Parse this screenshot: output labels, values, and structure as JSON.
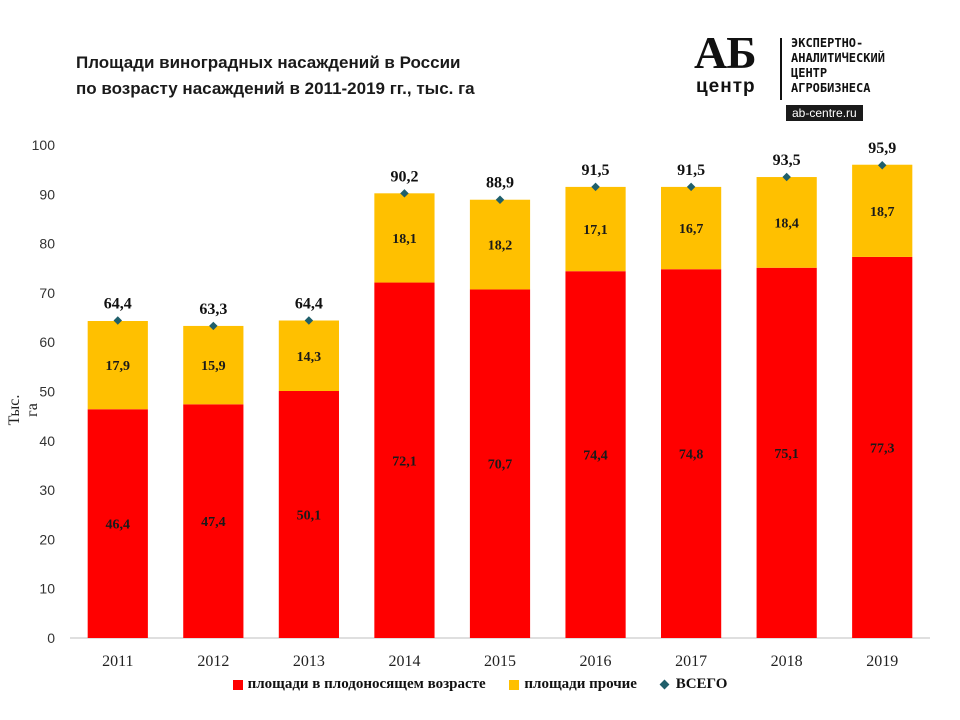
{
  "page": {
    "title_line1": "Площади виноградных насаждений в России",
    "title_line2": "по возрасту насаждений в 2011-2019 гг., тыс. га"
  },
  "logo": {
    "mark": "АБ",
    "mark_sub": "центр",
    "line1": "ЭКСПЕРТНО-",
    "line2": "АНАЛИТИЧЕСКИЙ",
    "line3": "ЦЕНТР",
    "line4": "АГРОБИЗНЕСА",
    "url": "ab-centre.ru"
  },
  "chart_data": {
    "type": "bar",
    "stacked": true,
    "title": "Площади виноградных насаждений в России по возрасту насаждений в 2011-2019 гг., тыс. га",
    "ylabel": "Тыс. га",
    "xlabel": "",
    "ylim": [
      0,
      100
    ],
    "yticks": [
      0,
      10,
      20,
      30,
      40,
      50,
      60,
      70,
      80,
      90,
      100
    ],
    "grid": false,
    "legend_position": "bottom",
    "categories": [
      "2011",
      "2012",
      "2013",
      "2014",
      "2015",
      "2016",
      "2017",
      "2018",
      "2019"
    ],
    "series": [
      {
        "name": "площади в плодоносящем возрасте",
        "color": "#ff0000",
        "values": [
          46.4,
          47.4,
          50.1,
          72.1,
          70.7,
          74.4,
          74.8,
          75.1,
          77.3
        ],
        "labels": [
          "46,4",
          "47,4",
          "50,1",
          "72,1",
          "70,7",
          "74,4",
          "74,8",
          "75,1",
          "77,3"
        ]
      },
      {
        "name": "площади прочие",
        "color": "#ffc000",
        "values": [
          17.9,
          15.9,
          14.3,
          18.1,
          18.2,
          17.1,
          16.7,
          18.4,
          18.7
        ],
        "labels": [
          "17,9",
          "15,9",
          "14,3",
          "18,1",
          "18,2",
          "17,1",
          "16,7",
          "18,4",
          "18,7"
        ]
      }
    ],
    "total": {
      "name": "ВСЕГО",
      "color": "#1f5f6b",
      "values": [
        64.4,
        63.3,
        64.4,
        90.2,
        88.9,
        91.5,
        91.5,
        93.5,
        95.9
      ],
      "labels": [
        "64,4",
        "63,3",
        "64,4",
        "90,2",
        "88,9",
        "91,5",
        "91,5",
        "93,5",
        "95,9"
      ]
    }
  }
}
